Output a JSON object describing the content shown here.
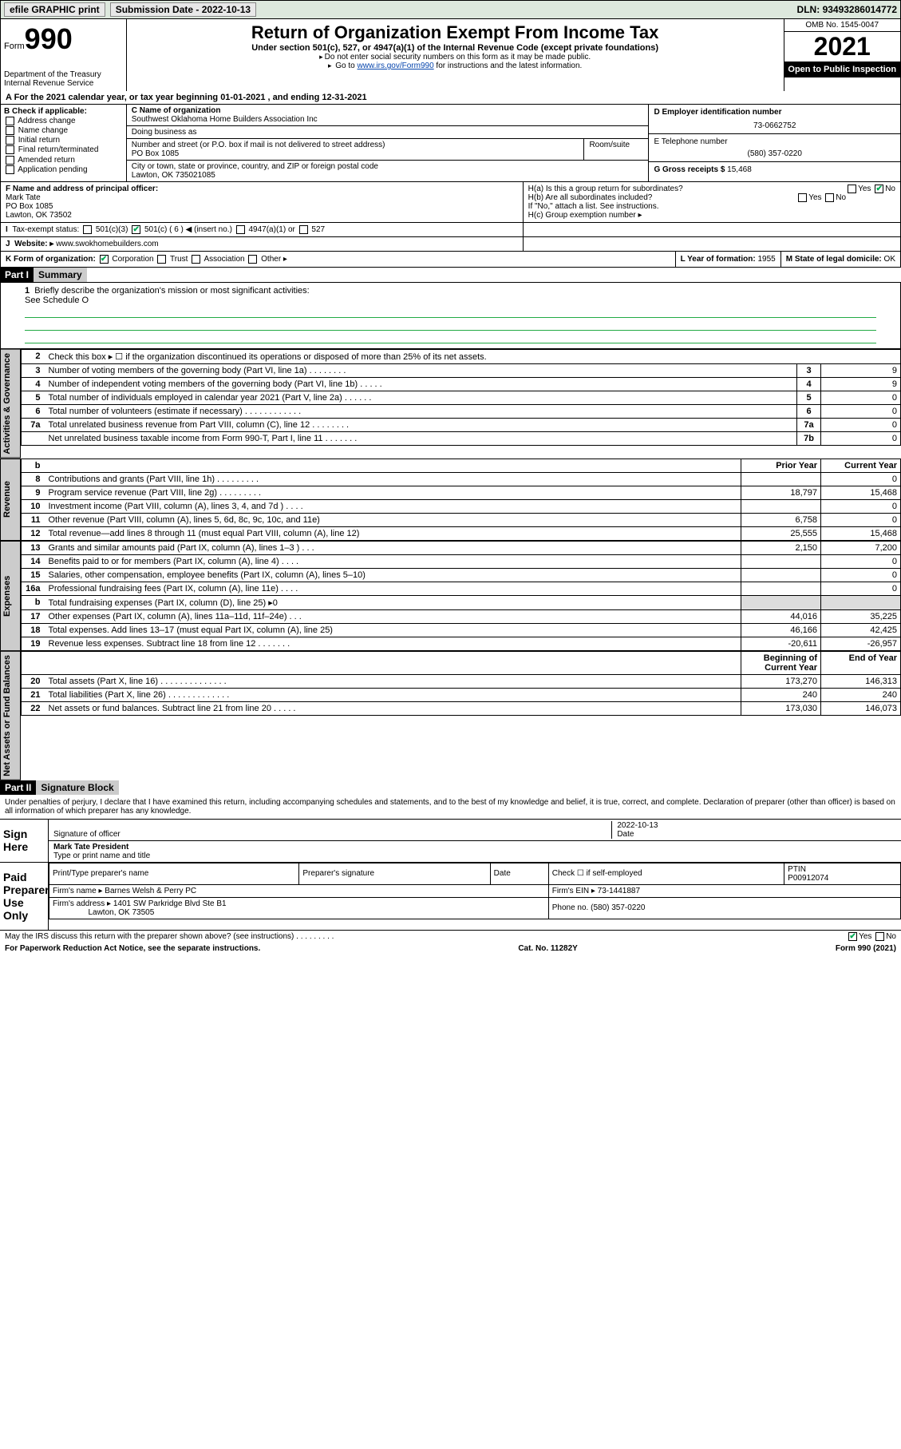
{
  "topbar": {
    "efile": "efile GRAPHIC print",
    "submission_label": "Submission Date",
    "submission_date": "2022-10-13",
    "dln_label": "DLN:",
    "dln": "93493286014772"
  },
  "header": {
    "form_word": "Form",
    "form_num": "990",
    "dept": "Department of the Treasury",
    "irs": "Internal Revenue Service",
    "title": "Return of Organization Exempt From Income Tax",
    "subtitle": "Under section 501(c), 527, or 4947(a)(1) of the Internal Revenue Code (except private foundations)",
    "note1": "Do not enter social security numbers on this form as it may be made public.",
    "note2_pre": "Go to ",
    "note2_link": "www.irs.gov/Form990",
    "note2_post": " for instructions and the latest information.",
    "omb": "OMB No. 1545-0047",
    "year": "2021",
    "open": "Open to Public Inspection"
  },
  "row_a": "A For the 2021 calendar year, or tax year beginning 01-01-2021  , and ending 12-31-2021",
  "col_b": {
    "label": "B Check if applicable:",
    "items": [
      "Address change",
      "Name change",
      "Initial return",
      "Final return/terminated",
      "Amended return",
      "Application pending"
    ]
  },
  "col_c": {
    "name_label": "C Name of organization",
    "name": "Southwest Oklahoma Home Builders Association Inc",
    "dba_label": "Doing business as",
    "dba": "",
    "addr_label": "Number and street (or P.O. box if mail is not delivered to street address)",
    "room_label": "Room/suite",
    "addr": "PO Box 1085",
    "city_label": "City or town, state or province, country, and ZIP or foreign postal code",
    "city": "Lawton, OK  735021085"
  },
  "col_d": {
    "d_label": "D Employer identification number",
    "d_val": "73-0662752",
    "e_label": "E Telephone number",
    "e_val": "(580) 357-0220",
    "g_label": "G Gross receipts $",
    "g_val": "15,468"
  },
  "f_block": {
    "f_label": "F Name and address of principal officer:",
    "f_name": "Mark Tate",
    "f_addr1": "PO Box 1085",
    "f_addr2": "Lawton, OK  73502",
    "ha_label": "H(a)  Is this a group return for subordinates?",
    "ha_yes": "Yes",
    "ha_no": "No",
    "hb_label": "H(b)  Are all subordinates included?",
    "hb_yes": "Yes",
    "hb_no": "No",
    "hb_note": "If \"No,\" attach a list. See instructions.",
    "hc_label": "H(c)  Group exemption number ▸"
  },
  "i_block": {
    "label": "Tax-exempt status:",
    "opt1": "501(c)(3)",
    "opt2": "501(c) ( 6 ) ◀ (insert no.)",
    "opt3": "4947(a)(1) or",
    "opt4": "527"
  },
  "j_block": {
    "label": "Website: ▸",
    "val": "www.swokhomebuilders.com"
  },
  "k_block": {
    "label": "K Form of organization:",
    "opts": [
      "Corporation",
      "Trust",
      "Association",
      "Other ▸"
    ],
    "l_label": "L Year of formation:",
    "l_val": "1955",
    "m_label": "M State of legal domicile:",
    "m_val": "OK"
  },
  "part1": {
    "hdr": "Part I",
    "title": "Summary",
    "line1_label": "1",
    "line1_text": "Briefly describe the organization's mission or most significant activities:",
    "line1_val": "See Schedule O",
    "line2_label": "2",
    "line2_text": "Check this box ▸ ☐ if the organization discontinued its operations or disposed of more than 25% of its net assets.",
    "sections": {
      "activities_label": "Activities & Governance",
      "revenue_label": "Revenue",
      "expenses_label": "Expenses",
      "netassets_label": "Net Assets or Fund Balances"
    },
    "gov_rows": [
      {
        "n": "3",
        "t": "Number of voting members of the governing body (Part VI, line 1a)  .   .   .   .   .   .   .   .",
        "box": "3",
        "v": "9"
      },
      {
        "n": "4",
        "t": "Number of independent voting members of the governing body (Part VI, line 1b)  .   .   .   .   .",
        "box": "4",
        "v": "9"
      },
      {
        "n": "5",
        "t": "Total number of individuals employed in calendar year 2021 (Part V, line 2a)  .   .   .   .   .   .",
        "box": "5",
        "v": "0"
      },
      {
        "n": "6",
        "t": "Total number of volunteers (estimate if necessary)  .   .   .   .   .   .   .   .   .   .   .   .",
        "box": "6",
        "v": "0"
      },
      {
        "n": "7a",
        "t": "Total unrelated business revenue from Part VIII, column (C), line 12  .   .   .   .   .   .   .   .",
        "box": "7a",
        "v": "0"
      },
      {
        "n": "",
        "t": "Net unrelated business taxable income from Form 990-T, Part I, line 11  .   .   .   .   .   .   .",
        "box": "7b",
        "v": "0"
      }
    ],
    "col_hdrs": {
      "b": "b",
      "prior": "Prior Year",
      "current": "Current Year"
    },
    "rev_rows": [
      {
        "n": "8",
        "t": "Contributions and grants (Part VIII, line 1h)  .   .   .   .   .   .   .   .   .",
        "p": "",
        "c": "0"
      },
      {
        "n": "9",
        "t": "Program service revenue (Part VIII, line 2g)  .   .   .   .   .   .   .   .   .",
        "p": "18,797",
        "c": "15,468"
      },
      {
        "n": "10",
        "t": "Investment income (Part VIII, column (A), lines 3, 4, and 7d )  .   .   .   .",
        "p": "",
        "c": "0"
      },
      {
        "n": "11",
        "t": "Other revenue (Part VIII, column (A), lines 5, 6d, 8c, 9c, 10c, and 11e)",
        "p": "6,758",
        "c": "0"
      },
      {
        "n": "12",
        "t": "Total revenue—add lines 8 through 11 (must equal Part VIII, column (A), line 12)",
        "p": "25,555",
        "c": "15,468"
      }
    ],
    "exp_rows": [
      {
        "n": "13",
        "t": "Grants and similar amounts paid (Part IX, column (A), lines 1–3 )  .   .   .",
        "p": "2,150",
        "c": "7,200"
      },
      {
        "n": "14",
        "t": "Benefits paid to or for members (Part IX, column (A), line 4)  .   .   .   .",
        "p": "",
        "c": "0"
      },
      {
        "n": "15",
        "t": "Salaries, other compensation, employee benefits (Part IX, column (A), lines 5–10)",
        "p": "",
        "c": "0"
      },
      {
        "n": "16a",
        "t": "Professional fundraising fees (Part IX, column (A), line 11e)  .   .   .   .",
        "p": "",
        "c": "0"
      },
      {
        "n": "b",
        "t": "Total fundraising expenses (Part IX, column (D), line 25) ▸0",
        "p": "shade",
        "c": "shade"
      },
      {
        "n": "17",
        "t": "Other expenses (Part IX, column (A), lines 11a–11d, 11f–24e)  .   .   .",
        "p": "44,016",
        "c": "35,225"
      },
      {
        "n": "18",
        "t": "Total expenses. Add lines 13–17 (must equal Part IX, column (A), line 25)",
        "p": "46,166",
        "c": "42,425"
      },
      {
        "n": "19",
        "t": "Revenue less expenses. Subtract line 18 from line 12  .   .   .   .   .   .   .",
        "p": "-20,611",
        "c": "-26,957"
      }
    ],
    "na_hdrs": {
      "begin": "Beginning of Current Year",
      "end": "End of Year"
    },
    "na_rows": [
      {
        "n": "20",
        "t": "Total assets (Part X, line 16)  .   .   .   .   .   .   .   .   .   .   .   .   .   .",
        "p": "173,270",
        "c": "146,313"
      },
      {
        "n": "21",
        "t": "Total liabilities (Part X, line 26)  .   .   .   .   .   .   .   .   .   .   .   .   .",
        "p": "240",
        "c": "240"
      },
      {
        "n": "22",
        "t": "Net assets or fund balances. Subtract line 21 from line 20  .   .   .   .   .",
        "p": "173,030",
        "c": "146,073"
      }
    ]
  },
  "part2": {
    "hdr": "Part II",
    "title": "Signature Block",
    "penalty": "Under penalties of perjury, I declare that I have examined this return, including accompanying schedules and statements, and to the best of my knowledge and belief, it is true, correct, and complete. Declaration of preparer (other than officer) is based on all information of which preparer has any knowledge.",
    "sign_here": "Sign Here",
    "sig_officer": "Signature of officer",
    "sig_date_label": "Date",
    "sig_date": "2022-10-13",
    "sig_name": "Mark Tate President",
    "sig_name_label": "Type or print name and title",
    "paid": "Paid Preparer Use Only",
    "prep_hdrs": [
      "Print/Type preparer's name",
      "Preparer's signature",
      "Date"
    ],
    "prep_check": "Check ☐ if self-employed",
    "ptin_label": "PTIN",
    "ptin": "P00912074",
    "firm_name_label": "Firm's name  ▸",
    "firm_name": "Barnes Welsh & Perry PC",
    "firm_ein_label": "Firm's EIN ▸",
    "firm_ein": "73-1441887",
    "firm_addr_label": "Firm's address ▸",
    "firm_addr1": "1401 SW Parkridge Blvd Ste B1",
    "firm_addr2": "Lawton, OK  73505",
    "phone_label": "Phone no.",
    "phone": "(580) 357-0220",
    "may_irs": "May the IRS discuss this return with the preparer shown above? (see instructions)  .   .   .   .   .   .   .   .   .",
    "may_yes": "Yes",
    "may_no": "No"
  },
  "footer": {
    "paperwork": "For Paperwork Reduction Act Notice, see the separate instructions.",
    "cat": "Cat. No. 11282Y",
    "form": "Form 990 (2021)"
  }
}
